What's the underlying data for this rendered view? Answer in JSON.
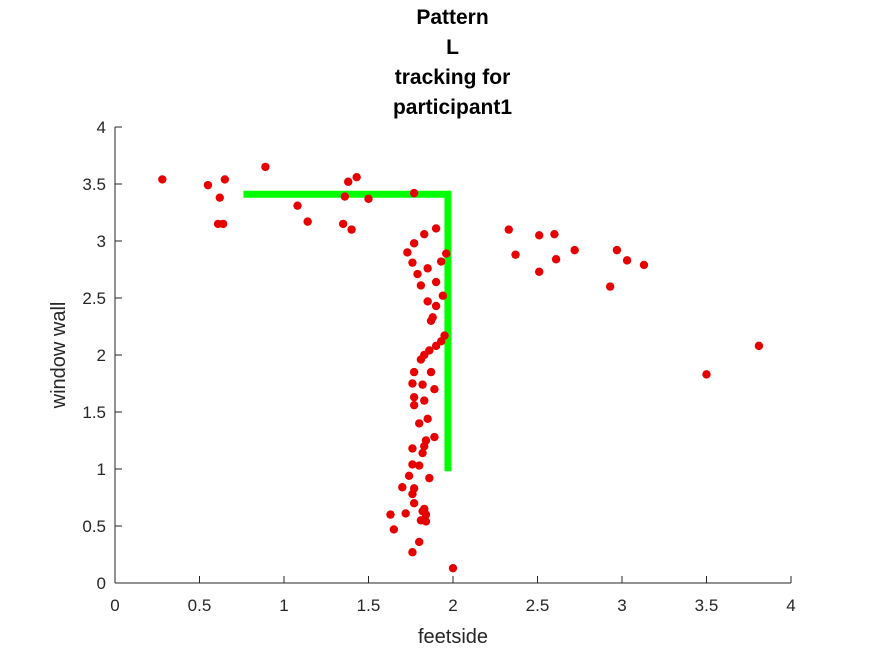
{
  "chart_data": {
    "type": "scatter",
    "title": [
      "Pattern",
      "L",
      "tracking for",
      "participant1"
    ],
    "xlabel": "feetside",
    "ylabel": "window wall",
    "xlim": [
      0,
      4
    ],
    "ylim": [
      0,
      4
    ],
    "xticks": [
      "0",
      "0.5",
      "1",
      "1.5",
      "2",
      "2.5",
      "3",
      "3.5",
      "4"
    ],
    "yticks": [
      "0",
      "0.5",
      "1",
      "1.5",
      "2",
      "2.5",
      "3",
      "3.5",
      "4"
    ],
    "grid": false,
    "series": [
      {
        "marker_color": "#e60000",
        "points": [
          [
            0.28,
            3.54
          ],
          [
            0.55,
            3.49
          ],
          [
            0.65,
            3.54
          ],
          [
            0.62,
            3.38
          ],
          [
            0.61,
            3.15
          ],
          [
            0.64,
            3.15
          ],
          [
            0.89,
            3.65
          ],
          [
            1.08,
            3.31
          ],
          [
            1.14,
            3.17
          ],
          [
            1.36,
            3.39
          ],
          [
            1.38,
            3.52
          ],
          [
            1.43,
            3.56
          ],
          [
            1.5,
            3.37
          ],
          [
            1.35,
            3.15
          ],
          [
            1.4,
            3.1
          ],
          [
            1.77,
            3.42
          ],
          [
            1.73,
            2.9
          ],
          [
            1.77,
            2.98
          ],
          [
            1.83,
            3.06
          ],
          [
            1.9,
            3.11
          ],
          [
            1.76,
            2.81
          ],
          [
            1.79,
            2.71
          ],
          [
            1.81,
            2.61
          ],
          [
            1.85,
            2.76
          ],
          [
            1.93,
            2.82
          ],
          [
            1.96,
            2.89
          ],
          [
            1.9,
            2.64
          ],
          [
            1.94,
            2.52
          ],
          [
            1.85,
            2.47
          ],
          [
            1.9,
            2.43
          ],
          [
            1.88,
            2.33
          ],
          [
            1.87,
            2.3
          ],
          [
            1.95,
            2.17
          ],
          [
            1.93,
            2.12
          ],
          [
            1.9,
            2.08
          ],
          [
            1.86,
            2.04
          ],
          [
            1.83,
            2.0
          ],
          [
            1.81,
            1.96
          ],
          [
            1.87,
            1.85
          ],
          [
            1.77,
            1.85
          ],
          [
            1.76,
            1.75
          ],
          [
            1.82,
            1.74
          ],
          [
            1.89,
            1.7
          ],
          [
            1.77,
            1.63
          ],
          [
            1.83,
            1.6
          ],
          [
            1.77,
            1.56
          ],
          [
            1.85,
            1.44
          ],
          [
            1.8,
            1.4
          ],
          [
            1.89,
            1.28
          ],
          [
            1.84,
            1.25
          ],
          [
            1.83,
            1.2
          ],
          [
            1.76,
            1.18
          ],
          [
            1.82,
            1.14
          ],
          [
            1.76,
            1.04
          ],
          [
            1.8,
            1.03
          ],
          [
            1.74,
            0.94
          ],
          [
            1.86,
            0.92
          ],
          [
            1.7,
            0.84
          ],
          [
            1.77,
            0.83
          ],
          [
            1.76,
            0.78
          ],
          [
            1.77,
            0.7
          ],
          [
            1.83,
            0.65
          ],
          [
            1.82,
            0.63
          ],
          [
            1.84,
            0.6
          ],
          [
            1.72,
            0.61
          ],
          [
            1.81,
            0.55
          ],
          [
            1.84,
            0.54
          ],
          [
            1.63,
            0.6
          ],
          [
            1.65,
            0.47
          ],
          [
            1.8,
            0.36
          ],
          [
            1.76,
            0.27
          ],
          [
            2.0,
            0.13
          ],
          [
            2.33,
            3.1
          ],
          [
            2.37,
            2.88
          ],
          [
            2.51,
            3.05
          ],
          [
            2.6,
            3.06
          ],
          [
            2.51,
            2.73
          ],
          [
            2.61,
            2.84
          ],
          [
            2.72,
            2.92
          ],
          [
            2.97,
            2.92
          ],
          [
            3.03,
            2.83
          ],
          [
            3.13,
            2.79
          ],
          [
            2.93,
            2.6
          ],
          [
            3.5,
            1.83
          ],
          [
            3.81,
            2.08
          ]
        ]
      }
    ],
    "pattern_path": {
      "color": "#00ff00",
      "points": [
        [
          0.76,
          3.41
        ],
        [
          1.97,
          3.41
        ],
        [
          1.97,
          0.98
        ]
      ]
    }
  }
}
